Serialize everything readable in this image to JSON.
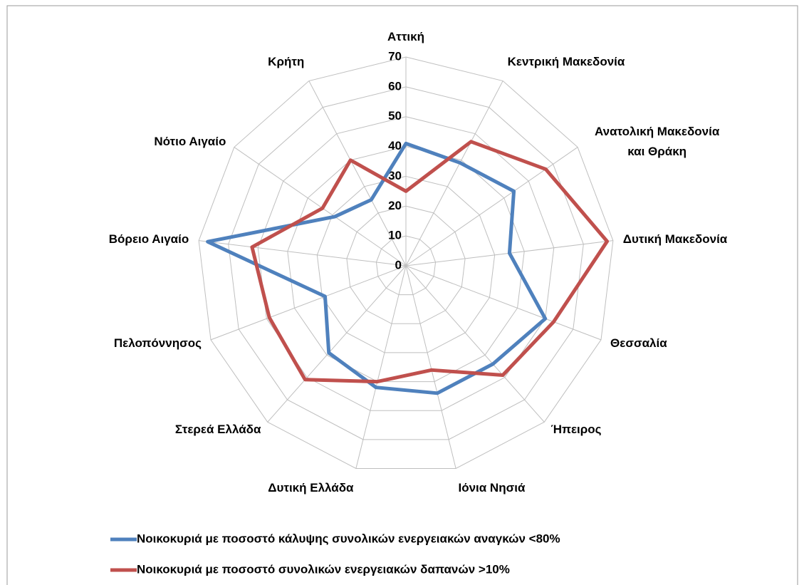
{
  "chart_data": {
    "type": "radar",
    "categories": [
      "Αττική",
      "Κεντρική Μακεδονία",
      "Ανατολική Μακεδονία και Θράκη",
      "Δυτική Μακεδονία",
      "Θεσσαλία",
      "Ήπειρος",
      "Ιόνια Νησιά",
      "Δυτική Ελλάδα",
      "Στερεά Ελλάδα",
      "Πελοπόννησος",
      "Βόρειο Αιγαίο",
      "Νότιο Αιγαίο",
      "Κρήτη"
    ],
    "series": [
      {
        "name": "Νοικοκυριά με ποσοστό κάλυψης συνολικών ενεργειακών αναγκών <80%",
        "color": "#4f81bd",
        "values": [
          41,
          39,
          44,
          35,
          50,
          44,
          44,
          42,
          39,
          29,
          67,
          29,
          25
        ]
      },
      {
        "name": "Νοικοκυριά με ποσοστό συνολικών ενεργειακών δαπανών >10%",
        "color": "#c0504d",
        "values": [
          25,
          47,
          57,
          68,
          53,
          49,
          36,
          40,
          51,
          49,
          52,
          34,
          40
        ]
      }
    ],
    "ylim": [
      0,
      70
    ],
    "yticks": [
      0,
      10,
      20,
      30,
      40,
      50,
      60,
      70
    ],
    "grid": true,
    "legend": "bottom"
  }
}
